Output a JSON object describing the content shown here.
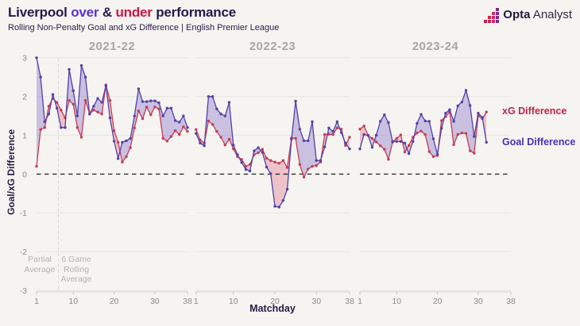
{
  "header": {
    "title_parts": {
      "p1": "Liverpool ",
      "p2": "over",
      "p3": " & ",
      "p4": "under",
      "p5": " performance"
    },
    "subtitle": "Rolling Non-Penalty Goal and xG Difference | English Premier League"
  },
  "logo": {
    "text_bold": "Opta",
    "text_regular": " Analyst",
    "icon": "bar-chart-squares-icon",
    "icon_colors": [
      "#c11f3e",
      "#c92550",
      "#d02a66",
      "#7c2b84"
    ],
    "icon_heights": [
      1,
      2,
      3,
      4
    ]
  },
  "legend": {
    "xg_label": "xG Difference",
    "goal_label": "Goal Difference"
  },
  "annotations": {
    "partial_average": "Partial\nAverage",
    "rolling_average": "6 Game\nRolling\nAverage"
  },
  "colors": {
    "background": "#f6f4f1",
    "title_dark": "#221a4a",
    "title_over_purple": "#5a31d1",
    "title_under_red": "#cf1440",
    "goal_line": "#5340a8",
    "xg_line": "#c63b55",
    "fill_overperformance": "rgba(109,84,194,0.32)",
    "fill_underperformance": "rgba(223,106,130,0.36)",
    "grid": "#e5e3e0",
    "zero_line": "#1c1c1c",
    "axis_text": "#8c8a88",
    "season_text": "#a9a5a1"
  },
  "chart_data": {
    "type": "line",
    "title": "Liverpool over & under performance",
    "subtitle": "Rolling Non-Penalty Goal and xG Difference | English Premier League",
    "xlabel": "Matchday",
    "ylabel": "Goal/xG Difference",
    "ylim": [
      -3,
      3
    ],
    "y_ticks": [
      3,
      2,
      1,
      0,
      -1,
      -2,
      -3
    ],
    "x_ticks": [
      1,
      10,
      20,
      30,
      38
    ],
    "x_start": 1,
    "grid": true,
    "legend_position": "right",
    "zero_line_dashed": true,
    "panels": [
      {
        "season": "2021-22",
        "matchdays": 38,
        "series": [
          {
            "name": "Goal Difference",
            "values": [
              3.0,
              2.5,
              1.35,
              1.55,
              2.05,
              1.7,
              1.2,
              1.2,
              2.7,
              2.15,
              1.5,
              2.8,
              2.5,
              1.55,
              1.75,
              1.95,
              1.85,
              2.28,
              1.45,
              0.85,
              0.4,
              0.82,
              0.86,
              0.92,
              1.5,
              2.2,
              1.87,
              1.87,
              1.89,
              1.89,
              1.84,
              1.5,
              1.7,
              1.7,
              1.38,
              1.34,
              1.5,
              1.2
            ]
          },
          {
            "name": "xG Difference",
            "values": [
              0.2,
              1.15,
              1.2,
              1.75,
              1.95,
              1.85,
              1.65,
              1.45,
              1.9,
              1.8,
              1.2,
              0.95,
              1.9,
              1.55,
              1.65,
              1.6,
              1.55,
              2.3,
              1.9,
              1.12,
              0.82,
              0.31,
              0.45,
              0.68,
              1.19,
              1.63,
              1.43,
              1.73,
              1.53,
              1.73,
              1.68,
              0.92,
              0.85,
              0.97,
              1.12,
              1.02,
              1.22,
              1.1
            ]
          }
        ],
        "partial_average_line_after_matchday": 6
      },
      {
        "season": "2022-23",
        "matchdays": 38,
        "series": [
          {
            "name": "Goal Difference",
            "values": [
              1.05,
              0.8,
              0.73,
              2.0,
              2.0,
              1.68,
              1.55,
              1.5,
              1.85,
              0.75,
              0.5,
              0.3,
              0.12,
              0.08,
              0.6,
              0.68,
              0.56,
              0.18,
              0.01,
              -0.83,
              -0.85,
              -0.68,
              -0.39,
              0.9,
              1.88,
              1.16,
              0.86,
              0.86,
              1.35,
              0.35,
              0.35,
              0.7,
              1.19,
              1.1,
              1.35,
              1.07,
              0.8,
              0.65
            ]
          },
          {
            "name": "xG Difference",
            "values": [
              1.15,
              0.88,
              0.8,
              1.37,
              1.28,
              1.1,
              0.95,
              0.75,
              0.9,
              0.65,
              0.45,
              0.38,
              0.2,
              0.25,
              0.5,
              0.55,
              0.64,
              0.41,
              0.35,
              0.31,
              0.28,
              0.35,
              0.17,
              0.93,
              0.92,
              0.25,
              -0.08,
              0.13,
              0.2,
              0.22,
              0.31,
              1.02,
              1.03,
              1.02,
              1.19,
              1.16,
              0.74,
              0.95
            ]
          }
        ]
      },
      {
        "season": "2023-24",
        "matchdays": 32,
        "series": [
          {
            "name": "Goal Difference",
            "values": [
              0.65,
              1.02,
              1.0,
              0.69,
              1.0,
              1.36,
              1.53,
              1.33,
              0.84,
              0.84,
              0.84,
              0.8,
              0.53,
              0.84,
              1.31,
              1.54,
              1.37,
              1.36,
              0.91,
              0.51,
              1.18,
              1.57,
              1.66,
              1.36,
              1.76,
              1.86,
              2.16,
              1.77,
              0.97,
              1.57,
              1.46,
              0.82
            ]
          },
          {
            "name": "xG Difference",
            "values": [
              1.16,
              1.24,
              1.0,
              0.92,
              0.83,
              0.73,
              0.64,
              0.38,
              0.82,
              0.92,
              1.01,
              0.57,
              0.74,
              0.95,
              1.06,
              1.11,
              1.02,
              0.58,
              0.45,
              0.48,
              1.38,
              1.48,
              1.6,
              0.76,
              1.02,
              1.06,
              1.05,
              0.6,
              0.54,
              1.5,
              1.43,
              1.6
            ]
          }
        ]
      }
    ]
  }
}
